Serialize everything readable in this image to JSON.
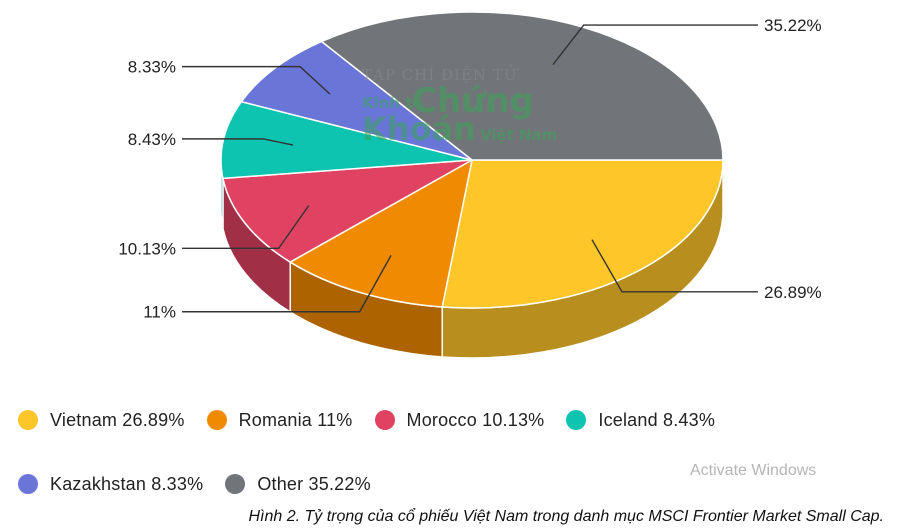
{
  "chart_data": {
    "type": "pie",
    "categories": [
      "Vietnam",
      "Romania",
      "Morocco",
      "Iceland",
      "Kazakhstan",
      "Other"
    ],
    "values": [
      26.89,
      11,
      10.13,
      8.43,
      8.33,
      35.22
    ],
    "labels": [
      "26.89%",
      "11%",
      "10.13%",
      "8.43%",
      "8.33%",
      "35.22%"
    ],
    "colors": [
      "#FFC629",
      "#F08A00",
      "#E04362",
      "#0CC4B0",
      "#6A75D8",
      "#717579"
    ],
    "legend": {
      "position": "bottom",
      "entries": [
        "Vietnam 26.89%",
        "Romania 11%",
        "Morocco 10.13%",
        "Iceland 8.43%",
        "Kazakhstan 8.33%",
        "Other 35.22%"
      ]
    }
  },
  "watermark": {
    "line1": "TẠP CHÍ ĐIỆN TỬ",
    "line2": "Kinh tế",
    "line3": "Chứng",
    "line4": "Khoán",
    "line5": "Việt Nam"
  },
  "caption": "Hình 2. Tỷ trọng của cổ phiếu Việt Nam trong danh mục MSCI Frontier Market Small Cap.",
  "overlay_text": "Activate Windows"
}
